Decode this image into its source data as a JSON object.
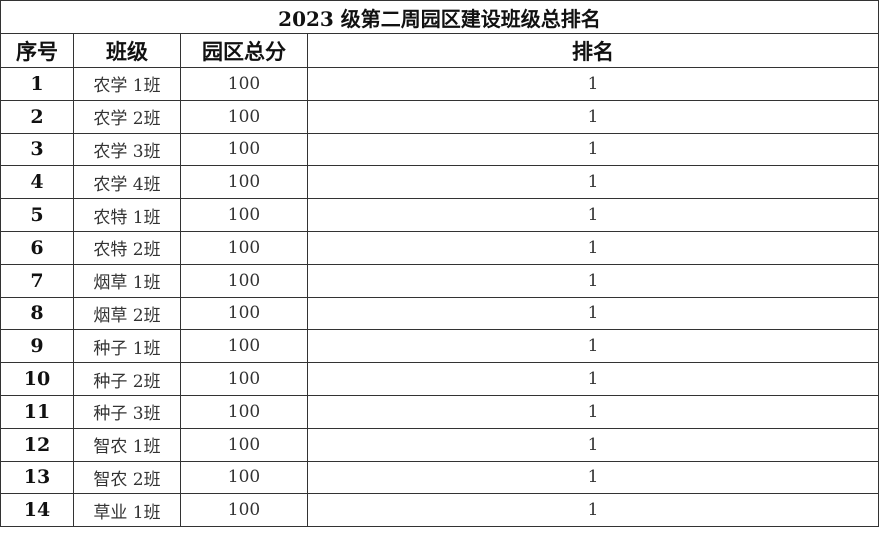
{
  "title": "2023 级第二周园区建设班级总排名",
  "headers": [
    "序号",
    "班级",
    "园区总分",
    "排名"
  ],
  "rows": [
    {
      "index": "1",
      "class": "农学 1班",
      "score": "100",
      "rank": "1"
    },
    {
      "index": "2",
      "class": "农学 2班",
      "score": "100",
      "rank": "1"
    },
    {
      "index": "3",
      "class": "农学 3班",
      "score": "100",
      "rank": "1"
    },
    {
      "index": "4",
      "class": "农学 4班",
      "score": "100",
      "rank": "1"
    },
    {
      "index": "5",
      "class": "农特 1班",
      "score": "100",
      "rank": "1"
    },
    {
      "index": "6",
      "class": "农特 2班",
      "score": "100",
      "rank": "1"
    },
    {
      "index": "7",
      "class": "烟草 1班",
      "score": "100",
      "rank": "1"
    },
    {
      "index": "8",
      "class": "烟草 2班",
      "score": "100",
      "rank": "1"
    },
    {
      "index": "9",
      "class": "种子 1班",
      "score": "100",
      "rank": "1"
    },
    {
      "index": "10",
      "class": "种子 2班",
      "score": "100",
      "rank": "1"
    },
    {
      "index": "11",
      "class": "种子 3班",
      "score": "100",
      "rank": "1"
    },
    {
      "index": "12",
      "class": "智农 1班",
      "score": "100",
      "rank": "1"
    },
    {
      "index": "13",
      "class": "智农 2班",
      "score": "100",
      "rank": "1"
    },
    {
      "index": "14",
      "class": "草业 1班",
      "score": "100",
      "rank": "1"
    }
  ]
}
